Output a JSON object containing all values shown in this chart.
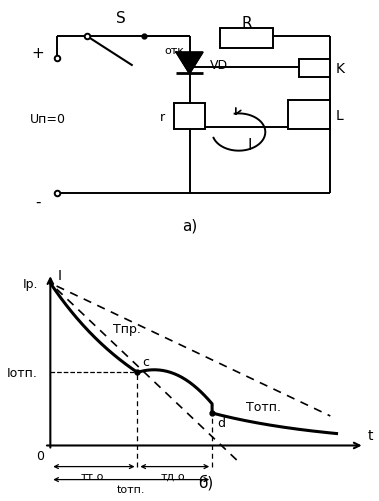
{
  "fig_width": 3.79,
  "fig_height": 5.02,
  "dpi": 100,
  "bg_color": "#ffffff",
  "circuit_label": "а)",
  "graph_label": "б)",
  "plus_label": "+",
  "minus_label": "-",
  "S_label": "S",
  "R_label": "R",
  "VD_label": "VD",
  "otk_label": "отк.",
  "r_label": "r",
  "I_label_circ": "I",
  "K_label": "K",
  "L_label": "L",
  "Up0_label": "Uп=0",
  "graph_I_label": "I",
  "graph_t_label": "t",
  "Ip_label": "Iр.",
  "Iotp_label": "Iотп.",
  "Tpr_label": "Тпр.",
  "Totp_label": "Тотп.",
  "c_label": "с",
  "d_label": "d",
  "tto_label": "тт.о.",
  "tdo_label": "тд.о.",
  "totp_label": "tотп.",
  "zero_label": "0",
  "line_color": "#000000"
}
